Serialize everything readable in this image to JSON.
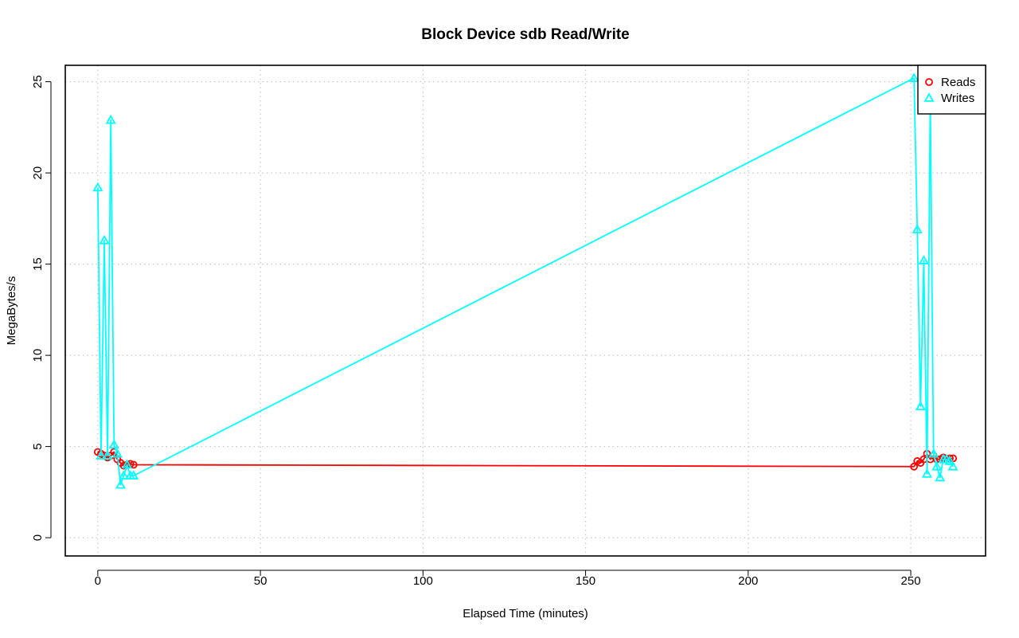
{
  "chart_data": {
    "type": "line",
    "title": "Block Device sdb Read/Write",
    "xlabel": "Elapsed Time (minutes)",
    "ylabel": "MegaBytes/s",
    "xlim": [
      -10,
      273
    ],
    "ylim": [
      -1,
      25.9
    ],
    "xticks": [
      0,
      50,
      100,
      150,
      200,
      250
    ],
    "yticks": [
      0,
      5,
      10,
      15,
      20,
      25
    ],
    "grid": true,
    "legend_position": "top-right",
    "series": [
      {
        "name": "Reads",
        "color": "#ff0000",
        "marker": "circle",
        "x": [
          0,
          1,
          2,
          3,
          4,
          5,
          6,
          7,
          8,
          9,
          10,
          11,
          251,
          252,
          253,
          254,
          255,
          256,
          257,
          258,
          259,
          260,
          261,
          262,
          263
        ],
        "y": [
          4.7,
          4.6,
          4.5,
          4.4,
          4.5,
          4.7,
          4.3,
          4.1,
          3.95,
          4.0,
          4.05,
          4.0,
          3.9,
          4.2,
          4.1,
          4.3,
          4.6,
          4.3,
          4.5,
          4.3,
          4.3,
          4.4,
          4.3,
          4.35,
          4.35
        ]
      },
      {
        "name": "Writes",
        "color": "#00ffff",
        "marker": "triangle",
        "x": [
          0,
          1,
          2,
          3,
          4,
          5,
          6,
          7,
          8,
          9,
          10,
          11,
          251,
          252,
          253,
          254,
          255,
          256,
          257,
          258,
          259,
          260,
          261,
          262,
          263
        ],
        "y": [
          19.2,
          4.5,
          16.3,
          4.5,
          22.9,
          5.1,
          4.6,
          2.9,
          3.4,
          4.0,
          3.4,
          3.4,
          25.2,
          16.9,
          7.2,
          15.2,
          3.5,
          24.2,
          4.6,
          3.9,
          3.3,
          4.3,
          4.3,
          4.2,
          3.9
        ]
      }
    ]
  }
}
